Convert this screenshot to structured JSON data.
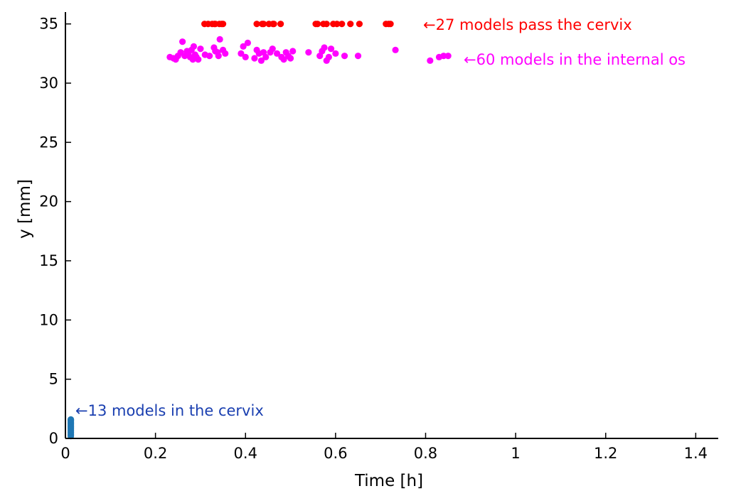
{
  "chart_data": {
    "type": "scatter",
    "xlabel": "Time [h]",
    "ylabel": "y [mm]",
    "xlim": [
      0,
      1.45
    ],
    "ylim": [
      0,
      36
    ],
    "x_ticks": [
      0,
      0.2,
      0.4,
      0.6,
      0.8,
      1,
      1.2,
      1.4
    ],
    "x_tick_labels": [
      "0",
      "0.2",
      "0.4",
      "0.6",
      "0.8",
      "1",
      "1.2",
      "1.4"
    ],
    "y_ticks": [
      0,
      5,
      10,
      15,
      20,
      25,
      30,
      35
    ],
    "y_tick_labels": [
      "0",
      "5",
      "10",
      "15",
      "20",
      "25",
      "30",
      "35"
    ],
    "grid": false,
    "legend": "none",
    "series": [
      {
        "color": "#ff0000",
        "annotation": "←27 models pass the cervix",
        "points": [
          [
            0.309,
            35
          ],
          [
            0.317,
            35
          ],
          [
            0.326,
            35
          ],
          [
            0.333,
            35
          ],
          [
            0.342,
            35
          ],
          [
            0.35,
            35
          ],
          [
            0.425,
            35
          ],
          [
            0.44,
            35
          ],
          [
            0.452,
            35
          ],
          [
            0.463,
            35
          ],
          [
            0.478,
            35
          ],
          [
            0.573,
            35
          ],
          [
            0.58,
            35
          ],
          [
            0.595,
            35
          ],
          [
            0.603,
            35
          ],
          [
            0.614,
            35
          ],
          [
            0.633,
            35
          ],
          [
            0.653,
            35
          ],
          [
            0.712,
            35
          ],
          [
            0.722,
            35
          ],
          [
            0.556,
            35
          ],
          [
            0.56,
            35
          ],
          [
            0.437,
            35
          ],
          [
            0.461,
            35
          ],
          [
            0.331,
            35
          ],
          [
            0.347,
            35
          ],
          [
            0.718,
            35
          ]
        ]
      },
      {
        "color": "#ff00ff",
        "annotation": "←60 models in the internal os",
        "points": [
          [
            0.232,
            32.2
          ],
          [
            0.24,
            32.1
          ],
          [
            0.245,
            32.0
          ],
          [
            0.25,
            32.3
          ],
          [
            0.256,
            32.6
          ],
          [
            0.26,
            33.5
          ],
          [
            0.265,
            32.3
          ],
          [
            0.27,
            32.7
          ],
          [
            0.273,
            32.5
          ],
          [
            0.277,
            32.2
          ],
          [
            0.28,
            32.8
          ],
          [
            0.283,
            32.0
          ],
          [
            0.285,
            33.1
          ],
          [
            0.288,
            32.4
          ],
          [
            0.291,
            32.2
          ],
          [
            0.295,
            32.0
          ],
          [
            0.3,
            32.9
          ],
          [
            0.31,
            32.4
          ],
          [
            0.32,
            32.3
          ],
          [
            0.33,
            33.0
          ],
          [
            0.333,
            32.7
          ],
          [
            0.338,
            32.6
          ],
          [
            0.34,
            32.3
          ],
          [
            0.343,
            33.7
          ],
          [
            0.35,
            32.8
          ],
          [
            0.355,
            32.5
          ],
          [
            0.39,
            32.5
          ],
          [
            0.395,
            33.1
          ],
          [
            0.4,
            32.2
          ],
          [
            0.405,
            33.4
          ],
          [
            0.42,
            32.1
          ],
          [
            0.425,
            32.8
          ],
          [
            0.43,
            32.5
          ],
          [
            0.435,
            31.9
          ],
          [
            0.44,
            32.6
          ],
          [
            0.445,
            32.2
          ],
          [
            0.455,
            32.6
          ],
          [
            0.46,
            32.9
          ],
          [
            0.47,
            32.5
          ],
          [
            0.48,
            32.2
          ],
          [
            0.485,
            32.0
          ],
          [
            0.49,
            32.6
          ],
          [
            0.495,
            32.3
          ],
          [
            0.5,
            32.1
          ],
          [
            0.505,
            32.7
          ],
          [
            0.54,
            32.6
          ],
          [
            0.565,
            32.3
          ],
          [
            0.57,
            32.7
          ],
          [
            0.575,
            33.0
          ],
          [
            0.58,
            31.9
          ],
          [
            0.585,
            32.2
          ],
          [
            0.59,
            32.9
          ],
          [
            0.6,
            32.5
          ],
          [
            0.62,
            32.3
          ],
          [
            0.65,
            32.3
          ],
          [
            0.733,
            32.8
          ],
          [
            0.81,
            31.9
          ],
          [
            0.83,
            32.2
          ],
          [
            0.84,
            32.3
          ],
          [
            0.85,
            32.3
          ]
        ]
      },
      {
        "color": "#1f77b4",
        "annotation": "←13 models in the cervix",
        "points": [
          [
            0.012,
            0.2
          ],
          [
            0.012,
            0.35
          ],
          [
            0.012,
            0.5
          ],
          [
            0.012,
            0.65
          ],
          [
            0.012,
            0.8
          ],
          [
            0.012,
            0.95
          ],
          [
            0.012,
            1.05
          ],
          [
            0.012,
            1.15
          ],
          [
            0.012,
            1.25
          ],
          [
            0.012,
            1.35
          ],
          [
            0.012,
            1.45
          ],
          [
            0.012,
            1.55
          ],
          [
            0.012,
            1.6
          ]
        ]
      }
    ]
  }
}
